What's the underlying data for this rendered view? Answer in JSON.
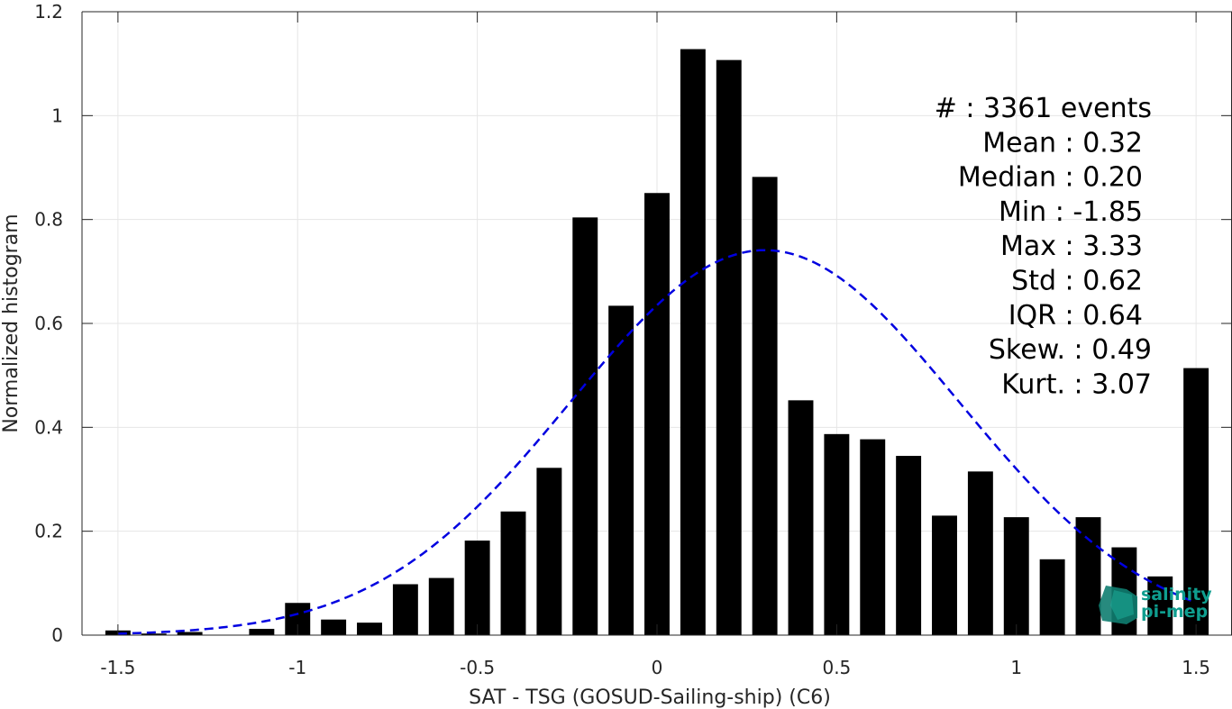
{
  "chart_data": {
    "type": "bar",
    "xlabel": "SAT - TSG (GOSUD-Sailing-ship) (C6)",
    "ylabel": "Normalized histogram",
    "xlim": [
      -1.6,
      1.6
    ],
    "ylim": [
      0,
      1.2
    ],
    "grid": true,
    "bin_width": 0.1,
    "x_ticks": [
      -1.5,
      -1,
      -0.5,
      0,
      0.5,
      1,
      1.5
    ],
    "x_tick_labels": [
      "-1.5",
      "-1",
      "-0.5",
      "0",
      "0.5",
      "1",
      "1.5"
    ],
    "y_ticks": [
      0,
      0.2,
      0.4,
      0.6,
      0.8,
      1,
      1.2
    ],
    "y_tick_labels": [
      "0",
      "0.2",
      "0.4",
      "0.6",
      "0.8",
      "1",
      "1.2"
    ],
    "series": [
      {
        "type": "bar",
        "color": "#000000",
        "x": [
          -1.5,
          -1.4,
          -1.3,
          -1.2,
          -1.1,
          -1.0,
          -0.9,
          -0.8,
          -0.7,
          -0.6,
          -0.5,
          -0.4,
          -0.3,
          -0.2,
          -0.1,
          0.0,
          0.1,
          0.2,
          0.3,
          0.4,
          0.5,
          0.6,
          0.7,
          0.8,
          0.9,
          1.0,
          1.1,
          1.2,
          1.3,
          1.4,
          1.5
        ],
        "values": [
          0.009,
          0.003,
          0.006,
          0.0,
          0.012,
          0.062,
          0.03,
          0.024,
          0.098,
          0.11,
          0.182,
          0.238,
          0.322,
          0.804,
          0.634,
          0.851,
          1.128,
          1.107,
          0.882,
          0.452,
          0.387,
          0.377,
          0.345,
          0.23,
          0.315,
          0.227,
          0.146,
          0.227,
          0.169,
          0.113,
          0.514
        ]
      },
      {
        "type": "line",
        "style": "dashed",
        "color": "#0000e0",
        "distribution": "normal",
        "mean": 0.3,
        "std": 0.54,
        "peak": 0.741,
        "x_range": [
          -1.5,
          1.5
        ]
      }
    ],
    "annotations": [
      "#  : 3361 events",
      "Mean : 0.32",
      "Median : 0.20",
      "Min : -1.85",
      "Max : 3.33",
      "Std : 0.62",
      "IQR : 0.64",
      "Skew. : 0.49",
      "Kurt. : 3.07"
    ]
  },
  "logo": {
    "line1": "salinity",
    "line2": "pi-mep",
    "color": "#0f9e8f"
  }
}
